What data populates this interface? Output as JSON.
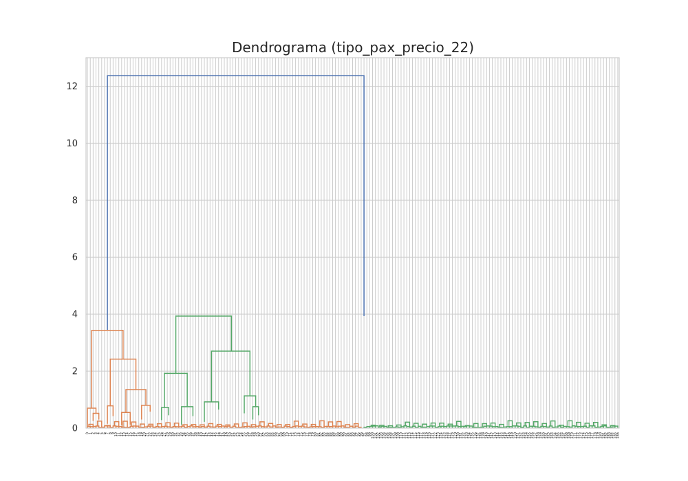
{
  "chart_data": {
    "type": "dendrogram",
    "title": "Dendrograma (tipo_pax_precio_22)",
    "xlabel": "",
    "ylabel": "",
    "ylim": [
      0,
      13
    ],
    "yticks": [
      0,
      2,
      4,
      6,
      8,
      10,
      12
    ],
    "grid": true,
    "leaf_count": 187,
    "colors": {
      "orange": "#dd8452",
      "green": "#55a868",
      "blue": "#4c72b0"
    },
    "clusters": [
      {
        "color": "orange",
        "leaf_count": 97,
        "merge_height": 3.43
      },
      {
        "color": "green",
        "leaf_count": 90,
        "merge_height": 3.93
      }
    ],
    "root_merge_height": 12.37,
    "links": [
      {
        "x": [
          7,
          7,
          97,
          97
        ],
        "y": [
          3.43,
          12.37,
          12.37,
          3.93
        ],
        "color": "blue"
      },
      {
        "x": [
          1.5,
          1.5,
          12.5,
          12.5
        ],
        "y": [
          0.7,
          3.43,
          3.43,
          2.42
        ],
        "color": "orange"
      },
      {
        "x": [
          0,
          0,
          3,
          3
        ],
        "y": [
          0.05,
          0.7,
          0.7,
          0.52
        ],
        "color": "orange"
      },
      {
        "x": [
          2,
          2,
          4,
          4
        ],
        "y": [
          0.25,
          0.52,
          0.52,
          0.3
        ],
        "color": "orange"
      },
      {
        "x": [
          8,
          8,
          17,
          17
        ],
        "y": [
          0.78,
          2.42,
          2.42,
          1.35
        ],
        "color": "orange"
      },
      {
        "x": [
          7,
          7,
          9,
          9
        ],
        "y": [
          0.15,
          0.78,
          0.78,
          0.42
        ],
        "color": "orange"
      },
      {
        "x": [
          13.5,
          13.5,
          20.5,
          20.5
        ],
        "y": [
          0.55,
          1.35,
          1.35,
          0.8
        ],
        "color": "orange"
      },
      {
        "x": [
          12,
          12,
          15,
          15
        ],
        "y": [
          0.1,
          0.55,
          0.55,
          0.12
        ],
        "color": "orange"
      },
      {
        "x": [
          19,
          19,
          22,
          22
        ],
        "y": [
          0.3,
          0.8,
          0.8,
          0.58
        ],
        "color": "orange"
      },
      {
        "x": [
          31,
          31,
          50.5,
          50.5
        ],
        "y": [
          1.92,
          3.93,
          3.93,
          2.7
        ],
        "color": "green"
      },
      {
        "x": [
          27,
          27,
          35,
          35
        ],
        "y": [
          0.72,
          1.92,
          1.92,
          0.75
        ],
        "color": "green"
      },
      {
        "x": [
          26,
          26,
          28.5,
          28.5
        ],
        "y": [
          0.28,
          0.72,
          0.72,
          0.45
        ],
        "color": "green"
      },
      {
        "x": [
          33,
          33,
          37,
          37
        ],
        "y": [
          0.12,
          0.75,
          0.75,
          0.42
        ],
        "color": "green"
      },
      {
        "x": [
          43.5,
          43.5,
          57,
          57
        ],
        "y": [
          0.92,
          2.7,
          2.7,
          1.13
        ],
        "color": "green"
      },
      {
        "x": [
          41,
          41,
          46,
          46
        ],
        "y": [
          0.22,
          0.92,
          0.92,
          0.65
        ],
        "color": "green"
      },
      {
        "x": [
          55,
          55,
          59,
          59
        ],
        "y": [
          0.52,
          1.13,
          1.13,
          0.75
        ],
        "color": "green"
      },
      {
        "x": [
          58,
          58,
          60,
          60
        ],
        "y": [
          0.3,
          0.75,
          0.75,
          0.45
        ],
        "color": "green"
      }
    ]
  }
}
